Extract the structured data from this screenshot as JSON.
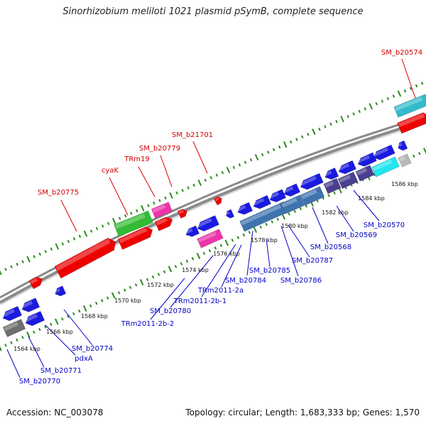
{
  "title": "Sinorhizobium meliloti 1021 plasmid pSymB, complete sequence",
  "footer": {
    "accession": "Accession: NC_003078",
    "stats": "Topology: circular; Length: 1,683,333 bp; Genes: 1,570"
  },
  "colors": {
    "backbone": "#8a8a8a",
    "ticks": "#2d8a1f",
    "forward_label": "#d40000",
    "reverse_label": "#0000c8",
    "feature_red": "#ee0000",
    "feature_green": "#33bb33",
    "feature_magenta": "#ee33aa",
    "feature_teal": "#33bbcc",
    "feature_blue": "#1a1ae0",
    "feature_steelblue": "#3f73b0",
    "feature_slate": "#4a3f90",
    "feature_cyan": "#22e6f0",
    "feature_gray": "#6e6e6e",
    "feature_lightgray": "#b8b8b8"
  },
  "forward_labels": [
    "SM_b20775",
    "cyaK",
    "TRm19",
    "SM_b20779",
    "SM_b21701",
    "SM_b20574"
  ],
  "reverse_labels": [
    "SM_b20770",
    "SM_b20771",
    "pdxA",
    "SM_b20774",
    "TRm2011-2b-2",
    "SM_b20780",
    "TRm2011-2b-1",
    "TRm2011-2a",
    "SM_b20784",
    "SM_b20785",
    "SM_b20786",
    "SM_b20787",
    "SM_b20568",
    "SM_b20569",
    "SM_b20570"
  ],
  "scale_labels": [
    "1564 kbp",
    "1566 kbp",
    "1568 kbp",
    "1570 kbp",
    "1572 kbp",
    "1574 kbp",
    "1576 kbp",
    "1578 kbp",
    "1580 kbp",
    "1582 kbp",
    "1584 kbp",
    "1586 kbp"
  ]
}
